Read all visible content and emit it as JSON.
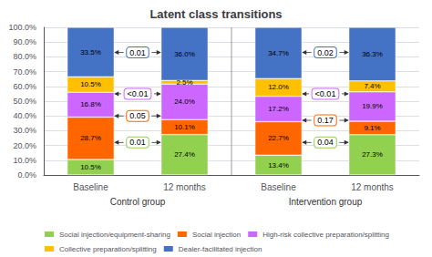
{
  "chart_data": {
    "type": "bar",
    "title": "Latent class transitions",
    "categories": [
      "Baseline",
      "12 months",
      "Baseline",
      "12 months"
    ],
    "groups": [
      "Control group",
      "Intervention group"
    ],
    "stacked": true,
    "data_labels": true,
    "grid": true,
    "legend": "bottom",
    "ylim": [
      0,
      100
    ],
    "yticks": [
      {
        "value": 0,
        "label": "0.0%"
      },
      {
        "value": 10,
        "label": "10.0%"
      },
      {
        "value": 20,
        "label": "20.0%"
      },
      {
        "value": 30,
        "label": "30.0%"
      },
      {
        "value": 40,
        "label": "40.0%"
      },
      {
        "value": 50,
        "label": "50.0%"
      },
      {
        "value": 60,
        "label": "60.0%"
      },
      {
        "value": 70,
        "label": "70.0%"
      },
      {
        "value": 80,
        "label": "80.0%"
      },
      {
        "value": 90,
        "label": "90.0%"
      },
      {
        "value": 100,
        "label": "100.0%"
      }
    ],
    "series": [
      {
        "name": "Social injection/equipment-sharing",
        "color": "#92d050",
        "values": [
          10.5,
          27.4,
          13.4,
          27.3
        ],
        "value_labels": [
          "10.5%",
          "27.4%",
          "13.4%",
          "27.3%"
        ]
      },
      {
        "name": "Social injection",
        "color": "#ff6600",
        "values": [
          28.7,
          10.1,
          22.7,
          9.1
        ],
        "value_labels": [
          "28.7%",
          "10.1%",
          "22.7%",
          "9.1%"
        ]
      },
      {
        "name": "High-risk collective preparation/splitting",
        "color": "#cc66ff",
        "values": [
          16.8,
          24.0,
          17.2,
          19.9
        ],
        "value_labels": [
          "16.8%",
          "24.0%",
          "17.2%",
          "19.9%"
        ]
      },
      {
        "name": "Collective preparation/splitting",
        "color": "#ffc000",
        "values": [
          10.5,
          2.5,
          12.0,
          7.4
        ],
        "value_labels": [
          "10.5%",
          "2.5%",
          "12.0%",
          "7.4%"
        ]
      },
      {
        "name": "Dealer-facilitated injection",
        "color": "#4472c4",
        "values": [
          33.5,
          36.0,
          34.7,
          36.3
        ],
        "value_labels": [
          "33.5%",
          "36.0%",
          "34.7%",
          "36.3%"
        ]
      }
    ],
    "annotations": [
      {
        "text": "0.01",
        "y": 83.0,
        "color": "#4472c4",
        "group": "Control group"
      },
      {
        "text": "<0.01",
        "y": 55.0,
        "color": "#cc66ff",
        "group": "Control group"
      },
      {
        "text": "0.05",
        "y": 40.0,
        "color": "#ff6600",
        "group": "Control group"
      },
      {
        "text": "0.01",
        "y": 22.0,
        "color": "#92d050",
        "group": "Control group"
      },
      {
        "text": "0.02",
        "y": 83.0,
        "color": "#4472c4",
        "group": "Intervention group"
      },
      {
        "text": "<0.01",
        "y": 55.0,
        "color": "#cc66ff",
        "group": "Intervention group"
      },
      {
        "text": "0.17",
        "y": 37.0,
        "color": "#ff6600",
        "group": "Intervention group"
      },
      {
        "text": "0.04",
        "y": 22.0,
        "color": "#92d050",
        "group": "Intervention group"
      }
    ]
  }
}
